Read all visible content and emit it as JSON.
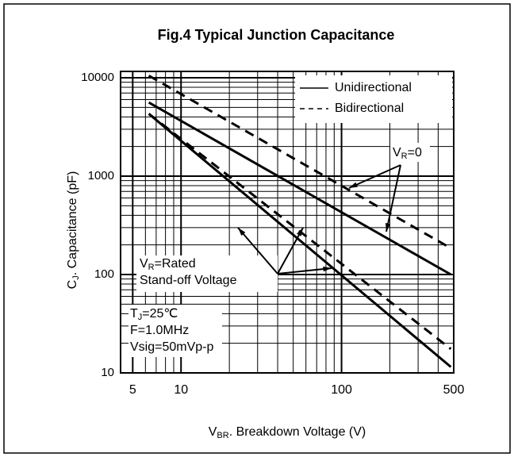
{
  "chart_data": {
    "type": "line",
    "title": "Fig.4 Typical Junction Capacitance",
    "xlabel": {
      "main": "V",
      "sub": "BR",
      "rest": ". Breakdown Voltage (V)"
    },
    "ylabel": {
      "main": "C",
      "sub": "J",
      "rest": ".   Capacitance (pF)"
    },
    "xscale": "log",
    "yscale": "log",
    "xlim": [
      4.2,
      500
    ],
    "ylim": [
      10,
      11600
    ],
    "xticks": [
      5,
      10,
      100,
      500
    ],
    "yticks": [
      10,
      100,
      1000,
      10000
    ],
    "grid": true,
    "minor_grid": true,
    "legend": "upper right",
    "legend_entries": [
      {
        "name": "Unidirectional",
        "style": "solid"
      },
      {
        "name": "Bidirectional",
        "style": "dashed"
      }
    ],
    "series": [
      {
        "name": "Unidirectional",
        "style": "solid",
        "color": "#000000",
        "x": [
          6.3,
          480
        ],
        "values": [
          5600,
          100
        ]
      },
      {
        "name": "Bidirectional",
        "style": "dashed",
        "color": "#000000",
        "x": [
          6.3,
          480
        ],
        "values": [
          10500,
          185
        ]
      },
      {
        "name": "Unidirectional",
        "style": "solid",
        "color": "#000000",
        "x": [
          6.3,
          480
        ],
        "values": [
          4300,
          11.5
        ]
      },
      {
        "name": "Bidirectional",
        "style": "dashed",
        "color": "#000000",
        "x": [
          6.3,
          480
        ],
        "values": [
          4300,
          17.5
        ]
      }
    ],
    "annotations": [
      {
        "main": "V",
        "sub": "R",
        "rest": "=0"
      },
      {
        "main": "V",
        "sub": "R",
        "rest": "=Rated"
      },
      {
        "main": "Stand-off Voltage",
        "sub": "",
        "rest": ""
      },
      {
        "main": "T",
        "sub": "J",
        "rest": "=25℃"
      },
      {
        "main": "F=1.0MHz",
        "sub": "",
        "rest": ""
      },
      {
        "main": "Vsig=50mVp-p",
        "sub": "",
        "rest": ""
      }
    ]
  }
}
